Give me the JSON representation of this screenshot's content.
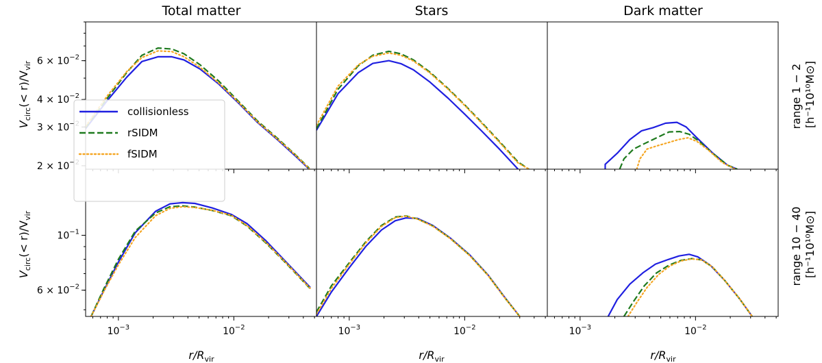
{
  "colors": {
    "collisionless": "#1f1fe0",
    "rSIDM": "#1e7a1e",
    "fSIDM": "#f5a623"
  },
  "columns": [
    "Total matter",
    "Stars",
    "Dark matter"
  ],
  "rows": [
    {
      "label_line1": "range 1 − 2",
      "label_line2": "[h⁻¹10¹⁰M⊙]"
    },
    {
      "label_line1": "range 10 − 40",
      "label_line2": "[h⁻¹10¹⁰M⊙]"
    }
  ],
  "xlabel": "r/R",
  "xlabel_sub": "vir",
  "ylabel_main": "V",
  "ylabel_sub1": "circ",
  "ylabel_mid": "(< r)/V",
  "ylabel_sub2": "vir",
  "x_ticks": [
    {
      "value": 0.001,
      "mantissa": "10",
      "exp": "−3"
    },
    {
      "value": 0.01,
      "mantissa": "10",
      "exp": "−2"
    }
  ],
  "legend": [
    "collisionless",
    "rSIDM",
    "fSIDM"
  ],
  "chart_data": [
    {
      "type": "line",
      "row": 0,
      "col": 0,
      "xscale": "log",
      "yscale": "log",
      "xlim": [
        0.00052,
        0.052
      ],
      "ylim": [
        0.0193,
        0.09
      ],
      "yticks": [
        {
          "value": 0.02,
          "label": "2 × 10",
          "exp": "−2"
        },
        {
          "value": 0.03,
          "label": "3 × 10",
          "exp": "−2"
        },
        {
          "value": 0.04,
          "label": "4 × 10",
          "exp": "−2"
        },
        {
          "value": 0.06,
          "label": "6 × 10",
          "exp": "−2"
        }
      ],
      "legend_placement": "center-left",
      "series": [
        {
          "name": "collisionless",
          "style": "solid",
          "x": [
            0.00052,
            0.0008,
            0.00118,
            0.0016,
            0.0022,
            0.0029,
            0.0037,
            0.0051,
            0.0074,
            0.011,
            0.016,
            0.024,
            0.034,
            0.045
          ],
          "y": [
            0.0295,
            0.0395,
            0.0505,
            0.0595,
            0.0625,
            0.0625,
            0.0605,
            0.055,
            0.047,
            0.0385,
            0.0315,
            0.0262,
            0.0222,
            0.0193
          ]
        },
        {
          "name": "rSIDM",
          "style": "dashed",
          "x": [
            0.00052,
            0.0008,
            0.00118,
            0.0016,
            0.0022,
            0.0029,
            0.0037,
            0.0051,
            0.0074,
            0.011,
            0.016,
            0.024,
            0.034,
            0.045
          ],
          "y": [
            0.0298,
            0.0405,
            0.053,
            0.0635,
            0.0685,
            0.0678,
            0.0645,
            0.0575,
            0.0485,
            0.0392,
            0.032,
            0.0266,
            0.0225,
            0.0195
          ]
        },
        {
          "name": "fSIDM",
          "style": "dotted",
          "x": [
            0.00052,
            0.0008,
            0.00118,
            0.0016,
            0.0022,
            0.0029,
            0.0037,
            0.0051,
            0.0074,
            0.011,
            0.016,
            0.024,
            0.034,
            0.045
          ],
          "y": [
            0.0302,
            0.0415,
            0.0535,
            0.062,
            0.0665,
            0.066,
            0.0625,
            0.056,
            0.0475,
            0.0388,
            0.0317,
            0.0264,
            0.0224,
            0.0194
          ]
        }
      ]
    },
    {
      "type": "line",
      "row": 0,
      "col": 1,
      "xscale": "log",
      "yscale": "log",
      "xlim": [
        0.00052,
        0.052
      ],
      "ylim": [
        0.0193,
        0.09
      ],
      "yticks": [],
      "series": [
        {
          "name": "collisionless",
          "style": "solid",
          "x": [
            0.00052,
            0.0008,
            0.0012,
            0.0016,
            0.0022,
            0.0028,
            0.0036,
            0.005,
            0.0072,
            0.01,
            0.014,
            0.02,
            0.029
          ],
          "y": [
            0.029,
            0.0425,
            0.053,
            0.0583,
            0.06,
            0.0582,
            0.0545,
            0.048,
            0.0405,
            0.0343,
            0.0288,
            0.0238,
            0.0193
          ]
        },
        {
          "name": "rSIDM",
          "style": "dashed",
          "x": [
            0.00052,
            0.0008,
            0.0012,
            0.0016,
            0.0022,
            0.0028,
            0.0036,
            0.005,
            0.0072,
            0.01,
            0.014,
            0.02,
            0.029,
            0.036
          ],
          "y": [
            0.0295,
            0.0445,
            0.057,
            0.0635,
            0.0662,
            0.0645,
            0.0605,
            0.0533,
            0.0448,
            0.0378,
            0.0315,
            0.0258,
            0.0208,
            0.0193
          ]
        },
        {
          "name": "fSIDM",
          "style": "dotted",
          "x": [
            0.00052,
            0.0008,
            0.0012,
            0.0016,
            0.0022,
            0.0028,
            0.0036,
            0.005,
            0.0072,
            0.01,
            0.014,
            0.02,
            0.029,
            0.036
          ],
          "y": [
            0.0305,
            0.046,
            0.0575,
            0.0628,
            0.065,
            0.0635,
            0.0598,
            0.0528,
            0.0445,
            0.0376,
            0.0313,
            0.0256,
            0.0206,
            0.0193
          ]
        }
      ]
    },
    {
      "type": "line",
      "row": 0,
      "col": 2,
      "xscale": "log",
      "yscale": "log",
      "xlim": [
        0.00052,
        0.052
      ],
      "ylim": [
        0.0193,
        0.09
      ],
      "yticks": [],
      "series": [
        {
          "name": "collisionless",
          "style": "solid",
          "x": [
            0.00165,
            0.00165,
            0.0021,
            0.0027,
            0.0034,
            0.0043,
            0.0055,
            0.0069,
            0.0083,
            0.0105,
            0.014,
            0.019,
            0.023
          ],
          "y": [
            0.0193,
            0.0203,
            0.0228,
            0.0263,
            0.0288,
            0.0298,
            0.0312,
            0.0315,
            0.03,
            0.0265,
            0.0229,
            0.0201,
            0.0193
          ]
        },
        {
          "name": "rSIDM",
          "style": "dashed",
          "x": [
            0.0022,
            0.0024,
            0.0029,
            0.0036,
            0.0046,
            0.0059,
            0.0073,
            0.0088,
            0.0108,
            0.014,
            0.019,
            0.023
          ],
          "y": [
            0.0193,
            0.0215,
            0.0238,
            0.0252,
            0.0268,
            0.0285,
            0.0286,
            0.0278,
            0.0258,
            0.0228,
            0.0201,
            0.0193
          ]
        },
        {
          "name": "fSIDM",
          "style": "dotted",
          "x": [
            0.0031,
            0.0033,
            0.0038,
            0.0046,
            0.0057,
            0.0071,
            0.0086,
            0.0103,
            0.013,
            0.017,
            0.022
          ],
          "y": [
            0.0193,
            0.0215,
            0.0238,
            0.0246,
            0.0254,
            0.0263,
            0.0268,
            0.0258,
            0.0235,
            0.0207,
            0.0193
          ]
        }
      ]
    },
    {
      "type": "line",
      "row": 1,
      "col": 0,
      "xscale": "log",
      "yscale": "log",
      "xlim": [
        0.00052,
        0.052
      ],
      "ylim": [
        0.047,
        0.185
      ],
      "yticks": [
        {
          "value": 0.06,
          "label": "6 × 10",
          "exp": "−2"
        },
        {
          "value": 0.1,
          "label": "10",
          "exp": "−1"
        }
      ],
      "series": [
        {
          "name": "collisionless",
          "style": "solid",
          "x": [
            0.00058,
            0.00075,
            0.001,
            0.0014,
            0.0021,
            0.0028,
            0.0036,
            0.0046,
            0.0065,
            0.0095,
            0.013,
            0.019,
            0.028,
            0.046
          ],
          "y": [
            0.047,
            0.06,
            0.078,
            0.1025,
            0.125,
            0.134,
            0.1355,
            0.1345,
            0.129,
            0.1215,
            0.1115,
            0.095,
            0.0785,
            0.0615
          ]
        },
        {
          "name": "rSIDM",
          "style": "dashed",
          "x": [
            0.00058,
            0.00075,
            0.001,
            0.0014,
            0.0021,
            0.0028,
            0.0036,
            0.0046,
            0.0065,
            0.0095,
            0.013,
            0.019,
            0.028,
            0.046
          ],
          "y": [
            0.047,
            0.061,
            0.08,
            0.104,
            0.123,
            0.1305,
            0.1315,
            0.13,
            0.126,
            0.12,
            0.109,
            0.093,
            0.0775,
            0.0608
          ]
        },
        {
          "name": "fSIDM",
          "style": "dotted",
          "x": [
            0.00058,
            0.00075,
            0.001,
            0.0014,
            0.0021,
            0.0028,
            0.0036,
            0.0046,
            0.0065,
            0.0095,
            0.013,
            0.019,
            0.028,
            0.046
          ],
          "y": [
            0.047,
            0.0595,
            0.076,
            0.098,
            0.12,
            0.1285,
            0.1305,
            0.1295,
            0.1262,
            0.1205,
            0.1095,
            0.0935,
            0.0778,
            0.061
          ]
        }
      ]
    },
    {
      "type": "line",
      "row": 1,
      "col": 1,
      "xscale": "log",
      "yscale": "log",
      "xlim": [
        0.00052,
        0.052
      ],
      "ylim": [
        0.047,
        0.185
      ],
      "yticks": [],
      "series": [
        {
          "name": "collisionless",
          "style": "solid",
          "x": [
            0.00052,
            0.0007,
            0.001,
            0.0014,
            0.0019,
            0.0025,
            0.0031,
            0.0039,
            0.0053,
            0.0075,
            0.011,
            0.016,
            0.022,
            0.03
          ],
          "y": [
            0.047,
            0.059,
            0.074,
            0.0905,
            0.105,
            0.1145,
            0.1175,
            0.117,
            0.1095,
            0.0975,
            0.0835,
            0.069,
            0.0565,
            0.047
          ]
        },
        {
          "name": "rSIDM",
          "style": "dashed",
          "x": [
            0.00052,
            0.0007,
            0.001,
            0.0014,
            0.0019,
            0.0025,
            0.0031,
            0.0039,
            0.0053,
            0.0075,
            0.011,
            0.016,
            0.022,
            0.03
          ],
          "y": [
            0.049,
            0.0625,
            0.0775,
            0.0945,
            0.1095,
            0.1185,
            0.1198,
            0.1165,
            0.109,
            0.0972,
            0.0832,
            0.0688,
            0.0563,
            0.047
          ]
        },
        {
          "name": "fSIDM",
          "style": "dotted",
          "x": [
            0.00052,
            0.0007,
            0.001,
            0.0014,
            0.0019,
            0.0025,
            0.0031,
            0.0039,
            0.0053,
            0.0075,
            0.011,
            0.016,
            0.022,
            0.03
          ],
          "y": [
            0.048,
            0.061,
            0.0765,
            0.0935,
            0.1085,
            0.1178,
            0.1195,
            0.1163,
            0.1088,
            0.097,
            0.083,
            0.0687,
            0.0562,
            0.047
          ]
        }
      ]
    },
    {
      "type": "line",
      "row": 1,
      "col": 2,
      "xscale": "log",
      "yscale": "log",
      "xlim": [
        0.00052,
        0.052
      ],
      "ylim": [
        0.047,
        0.185
      ],
      "yticks": [],
      "series": [
        {
          "name": "collisionless",
          "style": "solid",
          "x": [
            0.00175,
            0.0021,
            0.0027,
            0.0035,
            0.0045,
            0.0058,
            0.0072,
            0.0088,
            0.0105,
            0.0135,
            0.018,
            0.024,
            0.031
          ],
          "y": [
            0.047,
            0.055,
            0.0635,
            0.0705,
            0.0765,
            0.0798,
            0.0825,
            0.0838,
            0.0818,
            0.0755,
            0.0655,
            0.0555,
            0.047
          ]
        },
        {
          "name": "rSIDM",
          "style": "dashed",
          "x": [
            0.0024,
            0.0029,
            0.0036,
            0.0046,
            0.0059,
            0.0075,
            0.0093,
            0.0113,
            0.014,
            0.018,
            0.024,
            0.031
          ],
          "y": [
            0.047,
            0.054,
            0.0625,
            0.0705,
            0.0758,
            0.0792,
            0.0805,
            0.0795,
            0.0745,
            0.0655,
            0.0555,
            0.047
          ]
        },
        {
          "name": "fSIDM",
          "style": "dotted",
          "x": [
            0.0026,
            0.0031,
            0.0038,
            0.0048,
            0.006,
            0.0075,
            0.0093,
            0.0113,
            0.014,
            0.018,
            0.024,
            0.031
          ],
          "y": [
            0.047,
            0.0535,
            0.0615,
            0.0695,
            0.0752,
            0.0788,
            0.0803,
            0.0795,
            0.0745,
            0.0655,
            0.0555,
            0.047
          ]
        }
      ]
    }
  ]
}
